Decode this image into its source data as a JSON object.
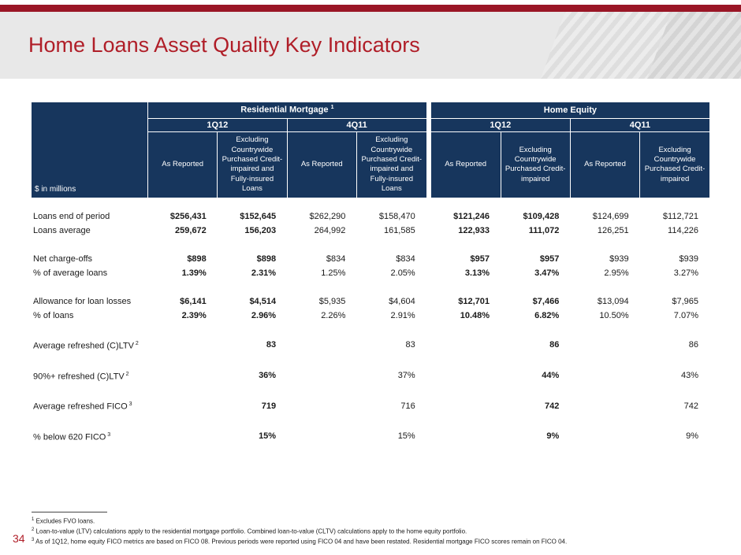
{
  "slide": {
    "title": "Home Loans Asset Quality Key Indicators",
    "page_number": "34"
  },
  "table": {
    "units_label": "$ in millions",
    "groups": [
      {
        "label": "Residential Mortgage",
        "sup": "1",
        "periods": [
          "1Q12",
          "4Q11"
        ]
      },
      {
        "label": "Home Equity",
        "sup": "",
        "periods": [
          "1Q12",
          "4Q11"
        ]
      }
    ],
    "col_headers": [
      "As Reported",
      "Excluding Countrywide Purchased Credit-impaired and Fully-insured Loans",
      "As Reported",
      "Excluding Countrywide Purchased Credit-impaired and Fully-insured Loans",
      "As Reported",
      "Excluding Countrywide Purchased Credit-impaired",
      "As Reported",
      "Excluding Countrywide Purchased Credit-impaired"
    ],
    "bold_columns": [
      0,
      1,
      4,
      5
    ],
    "rows": [
      {
        "label": "Loans end of period",
        "values": [
          "$256,431",
          "$152,645",
          "$262,290",
          "$158,470",
          "$121,246",
          "$109,428",
          "$124,699",
          "$112,721"
        ]
      },
      {
        "label": "Loans average",
        "values": [
          "259,672",
          "156,203",
          "264,992",
          "161,585",
          "122,933",
          "111,072",
          "126,251",
          "114,226"
        ]
      },
      {
        "spacer": true
      },
      {
        "label": "Net charge-offs",
        "values": [
          "$898",
          "$898",
          "$834",
          "$834",
          "$957",
          "$957",
          "$939",
          "$939"
        ]
      },
      {
        "label": "% of average loans",
        "values": [
          "1.39%",
          "2.31%",
          "1.25%",
          "2.05%",
          "3.13%",
          "3.47%",
          "2.95%",
          "3.27%"
        ]
      },
      {
        "spacer": true
      },
      {
        "label": "Allowance for loan losses",
        "values": [
          "$6,141",
          "$4,514",
          "$5,935",
          "$4,604",
          "$12,701",
          "$7,466",
          "$13,094",
          "$7,965"
        ]
      },
      {
        "label": "% of loans",
        "values": [
          "2.39%",
          "2.96%",
          "2.26%",
          "2.91%",
          "10.48%",
          "6.82%",
          "10.50%",
          "7.07%"
        ]
      },
      {
        "spacer": true
      },
      {
        "label": "Average refreshed (C)LTV",
        "sup": "2",
        "values": [
          "",
          "83",
          "",
          "83",
          "",
          "86",
          "",
          "86"
        ]
      },
      {
        "spacer": true
      },
      {
        "label": "90%+ refreshed (C)LTV",
        "sup": "2",
        "values": [
          "",
          "36%",
          "",
          "37%",
          "",
          "44%",
          "",
          "43%"
        ]
      },
      {
        "spacer": true
      },
      {
        "label": "Average refreshed FICO",
        "sup": "3",
        "values": [
          "",
          "719",
          "",
          "716",
          "",
          "742",
          "",
          "742"
        ]
      },
      {
        "spacer": true
      },
      {
        "label": "% below 620 FICO",
        "sup": "3",
        "values": [
          "",
          "15%",
          "",
          "15%",
          "",
          "9%",
          "",
          "9%"
        ]
      }
    ]
  },
  "footnotes": [
    {
      "sup": "1",
      "text": "Excludes FVO loans."
    },
    {
      "sup": "2",
      "text": "Loan-to-value (LTV) calculations apply to the residential mortgage portfolio. Combined loan-to-value (CLTV) calculations apply to the home equity portfolio."
    },
    {
      "sup": "3",
      "text": "As of 1Q12, home equity FICO metrics are based on FICO 08. Previous periods were reported using FICO 04 and have been restated. Residential mortgage FICO scores remain on FICO 04."
    }
  ],
  "colors": {
    "header_navy": "#17365d",
    "accent_red": "#b01e28",
    "top_bar_red": "#9a1626",
    "band_gray": "#e8e8e8"
  }
}
